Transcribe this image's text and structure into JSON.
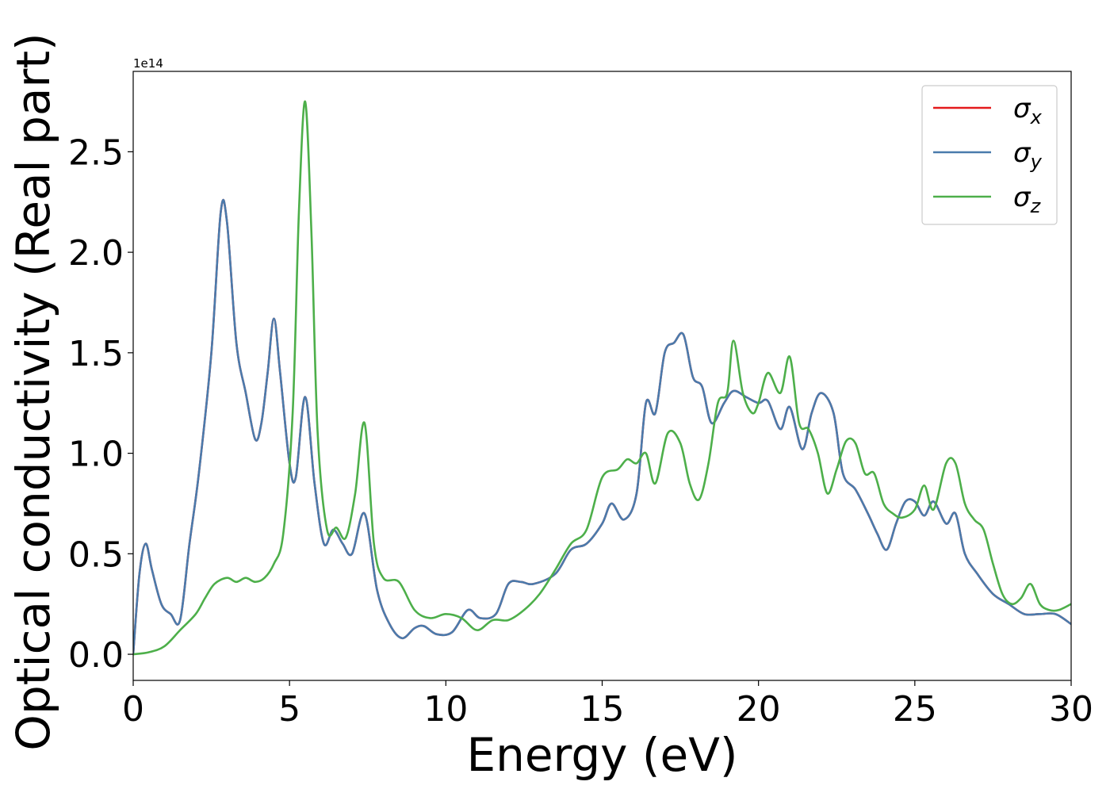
{
  "chart_data": {
    "type": "line",
    "xlabel": "Energy (eV)",
    "ylabel": "Optical conductivity (Real part)",
    "y_offset_text": "1e14",
    "xlim": [
      0,
      30
    ],
    "ylim": [
      -0.13,
      2.9
    ],
    "x_ticks": [
      0,
      5,
      10,
      15,
      20,
      25,
      30
    ],
    "x_tick_labels": [
      "0",
      "5",
      "10",
      "15",
      "20",
      "25",
      "30"
    ],
    "y_ticks": [
      0.0,
      0.5,
      1.0,
      1.5,
      2.0,
      2.5
    ],
    "y_tick_labels": [
      "0.0",
      "0.5",
      "1.0",
      "1.5",
      "2.0",
      "2.5"
    ],
    "legend_position": "top-right",
    "grid": false,
    "series": [
      {
        "name": "σ",
        "subscript": "x",
        "color": "#e41a1c",
        "x": [
          0,
          0.2,
          0.4,
          0.6,
          0.9,
          1.2,
          1.5,
          1.8,
          2.1,
          2.5,
          2.8,
          3.0,
          3.3,
          3.6,
          3.9,
          4.1,
          4.3,
          4.5,
          4.7,
          5.0,
          5.2,
          5.5,
          5.8,
          6.1,
          6.4,
          6.7,
          7.0,
          7.4,
          7.8,
          8.2,
          8.6,
          9.0,
          9.3,
          9.7,
          10.2,
          10.7,
          11.1,
          11.6,
          12.0,
          12.4,
          12.8,
          13.5,
          14.0,
          14.5,
          15.0,
          15.3,
          15.7,
          16.1,
          16.4,
          16.7,
          17.0,
          17.3,
          17.6,
          17.9,
          18.2,
          18.5,
          18.9,
          19.2,
          19.6,
          20.0,
          20.3,
          20.7,
          21.0,
          21.4,
          21.7,
          22.0,
          22.4,
          22.7,
          23.1,
          23.5,
          23.8,
          24.1,
          24.4,
          24.7,
          25.0,
          25.3,
          25.6,
          26.0,
          26.3,
          26.6,
          27.0,
          27.5,
          28.0,
          28.5,
          29.0,
          29.5,
          30.0
        ],
        "values": [
          0.0,
          0.4,
          0.55,
          0.42,
          0.25,
          0.2,
          0.17,
          0.55,
          0.9,
          1.5,
          2.2,
          2.15,
          1.55,
          1.3,
          1.07,
          1.15,
          1.4,
          1.67,
          1.4,
          0.95,
          0.88,
          1.28,
          0.85,
          0.55,
          0.62,
          0.55,
          0.5,
          0.7,
          0.32,
          0.15,
          0.08,
          0.13,
          0.14,
          0.1,
          0.11,
          0.22,
          0.18,
          0.2,
          0.35,
          0.36,
          0.35,
          0.4,
          0.52,
          0.55,
          0.65,
          0.75,
          0.67,
          0.8,
          1.25,
          1.2,
          1.5,
          1.55,
          1.59,
          1.38,
          1.33,
          1.15,
          1.25,
          1.31,
          1.28,
          1.25,
          1.26,
          1.12,
          1.23,
          1.02,
          1.2,
          1.3,
          1.2,
          0.9,
          0.82,
          0.7,
          0.6,
          0.52,
          0.65,
          0.76,
          0.76,
          0.69,
          0.76,
          0.65,
          0.7,
          0.5,
          0.4,
          0.3,
          0.25,
          0.2,
          0.2,
          0.2,
          0.15
        ]
      },
      {
        "name": "σ",
        "subscript": "y",
        "color": "#4a7bac",
        "x": [
          0,
          0.2,
          0.4,
          0.6,
          0.9,
          1.2,
          1.5,
          1.8,
          2.1,
          2.5,
          2.8,
          3.0,
          3.3,
          3.6,
          3.9,
          4.1,
          4.3,
          4.5,
          4.7,
          5.0,
          5.2,
          5.5,
          5.8,
          6.1,
          6.4,
          6.7,
          7.0,
          7.4,
          7.8,
          8.2,
          8.6,
          9.0,
          9.3,
          9.7,
          10.2,
          10.7,
          11.1,
          11.6,
          12.0,
          12.4,
          12.8,
          13.5,
          14.0,
          14.5,
          15.0,
          15.3,
          15.7,
          16.1,
          16.4,
          16.7,
          17.0,
          17.3,
          17.6,
          17.9,
          18.2,
          18.5,
          18.9,
          19.2,
          19.6,
          20.0,
          20.3,
          20.7,
          21.0,
          21.4,
          21.7,
          22.0,
          22.4,
          22.7,
          23.1,
          23.5,
          23.8,
          24.1,
          24.4,
          24.7,
          25.0,
          25.3,
          25.6,
          26.0,
          26.3,
          26.6,
          27.0,
          27.5,
          28.0,
          28.5,
          29.0,
          29.5,
          30.0
        ],
        "values": [
          0.0,
          0.4,
          0.55,
          0.42,
          0.25,
          0.2,
          0.17,
          0.55,
          0.9,
          1.5,
          2.2,
          2.15,
          1.55,
          1.3,
          1.07,
          1.15,
          1.4,
          1.67,
          1.4,
          0.95,
          0.88,
          1.28,
          0.85,
          0.55,
          0.62,
          0.55,
          0.5,
          0.7,
          0.32,
          0.15,
          0.08,
          0.13,
          0.14,
          0.1,
          0.11,
          0.22,
          0.18,
          0.2,
          0.35,
          0.36,
          0.35,
          0.4,
          0.52,
          0.55,
          0.65,
          0.75,
          0.67,
          0.8,
          1.25,
          1.2,
          1.5,
          1.55,
          1.59,
          1.38,
          1.33,
          1.15,
          1.25,
          1.31,
          1.28,
          1.25,
          1.26,
          1.12,
          1.23,
          1.02,
          1.2,
          1.3,
          1.2,
          0.9,
          0.82,
          0.7,
          0.6,
          0.52,
          0.65,
          0.76,
          0.76,
          0.69,
          0.76,
          0.65,
          0.7,
          0.5,
          0.4,
          0.3,
          0.25,
          0.2,
          0.2,
          0.2,
          0.15
        ]
      },
      {
        "name": "σ",
        "subscript": "z",
        "color": "#4daf4a",
        "x": [
          0,
          0.5,
          1.0,
          1.5,
          2.0,
          2.3,
          2.6,
          3.0,
          3.3,
          3.6,
          3.9,
          4.2,
          4.5,
          4.8,
          5.1,
          5.3,
          5.5,
          5.7,
          5.9,
          6.2,
          6.5,
          6.8,
          7.1,
          7.4,
          7.7,
          8.0,
          8.5,
          9.0,
          9.5,
          10.0,
          10.5,
          11.0,
          11.5,
          12.0,
          12.5,
          13.0,
          13.5,
          14.0,
          14.5,
          15.0,
          15.5,
          15.8,
          16.1,
          16.4,
          16.7,
          17.1,
          17.5,
          17.8,
          18.1,
          18.4,
          18.7,
          19.0,
          19.2,
          19.5,
          19.8,
          20.0,
          20.3,
          20.7,
          21.0,
          21.3,
          21.6,
          21.9,
          22.2,
          22.5,
          22.8,
          23.1,
          23.4,
          23.7,
          24.0,
          24.3,
          24.6,
          25.0,
          25.3,
          25.6,
          26.0,
          26.3,
          26.6,
          26.9,
          27.2,
          27.5,
          27.8,
          28.1,
          28.4,
          28.7,
          29.0,
          29.3,
          29.6,
          30.0
        ],
        "values": [
          0.0,
          0.01,
          0.04,
          0.12,
          0.2,
          0.28,
          0.35,
          0.38,
          0.36,
          0.38,
          0.36,
          0.38,
          0.45,
          0.6,
          1.2,
          2.2,
          2.75,
          2.1,
          1.1,
          0.62,
          0.63,
          0.58,
          0.8,
          1.15,
          0.55,
          0.38,
          0.36,
          0.22,
          0.18,
          0.2,
          0.18,
          0.12,
          0.17,
          0.17,
          0.22,
          0.3,
          0.42,
          0.55,
          0.62,
          0.88,
          0.92,
          0.97,
          0.95,
          1.0,
          0.85,
          1.1,
          1.05,
          0.85,
          0.77,
          0.95,
          1.25,
          1.3,
          1.56,
          1.3,
          1.2,
          1.25,
          1.4,
          1.3,
          1.48,
          1.15,
          1.12,
          1.0,
          0.8,
          0.92,
          1.06,
          1.05,
          0.9,
          0.9,
          0.75,
          0.7,
          0.68,
          0.72,
          0.84,
          0.72,
          0.95,
          0.95,
          0.75,
          0.67,
          0.62,
          0.45,
          0.3,
          0.25,
          0.28,
          0.35,
          0.25,
          0.22,
          0.22,
          0.25
        ]
      }
    ]
  }
}
